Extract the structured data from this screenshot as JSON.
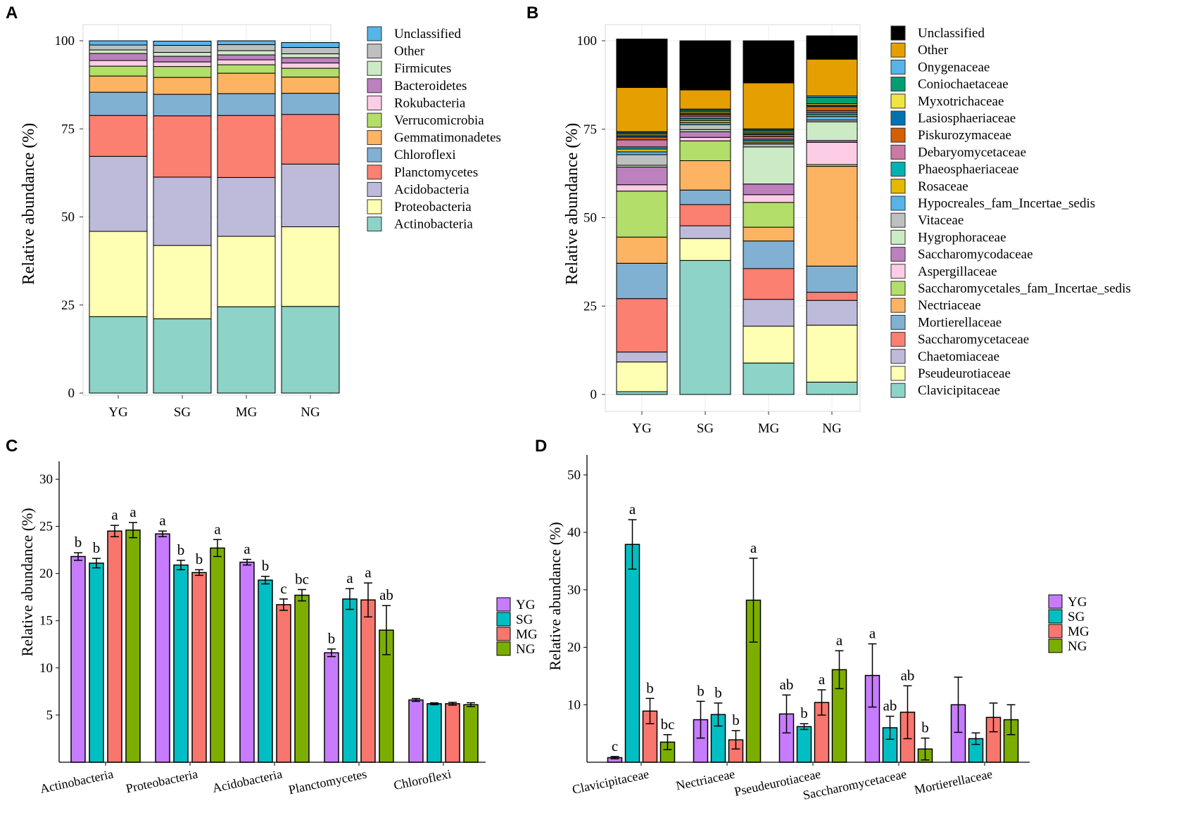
{
  "chart_data": [
    {
      "panel": "A",
      "type": "bar",
      "stacked": true,
      "ylabel": "Relative abundance (%)",
      "ylim": [
        0,
        100
      ],
      "yticks": [
        0,
        25,
        50,
        75,
        100
      ],
      "categories": [
        "YG",
        "SG",
        "MG",
        "NG"
      ],
      "series": [
        {
          "name": "Actinobacteria",
          "color": "#8dd3c7",
          "values": [
            21.7,
            21.1,
            24.5,
            24.6
          ]
        },
        {
          "name": "Proteobacteria",
          "color": "#ffffb3",
          "values": [
            24.2,
            20.8,
            20.0,
            22.6
          ]
        },
        {
          "name": "Acidobacteria",
          "color": "#bebada",
          "values": [
            21.3,
            19.4,
            16.7,
            17.8
          ]
        },
        {
          "name": "Planctomycetes",
          "color": "#fb8072",
          "values": [
            11.6,
            17.4,
            17.6,
            14.1
          ]
        },
        {
          "name": "Chloroflexi",
          "color": "#80b1d3",
          "values": [
            6.6,
            6.1,
            6.2,
            6.0
          ]
        },
        {
          "name": "Gemmatimonadetes",
          "color": "#fdb462",
          "values": [
            4.6,
            4.8,
            5.8,
            4.6
          ]
        },
        {
          "name": "Verrucomicrobia",
          "color": "#b3de69",
          "values": [
            2.8,
            3.1,
            2.4,
            2.5
          ]
        },
        {
          "name": "Rokubacteria",
          "color": "#fccde5",
          "values": [
            1.6,
            1.3,
            1.4,
            1.5
          ]
        },
        {
          "name": "Bacteroidetes",
          "color": "#bc80bd",
          "values": [
            2.0,
            1.6,
            1.4,
            1.5
          ]
        },
        {
          "name": "Firmicutes",
          "color": "#ccebc5",
          "values": [
            1.0,
            1.1,
            1.2,
            1.1
          ]
        },
        {
          "name": "Other",
          "color": "#bfbfbf",
          "values": [
            1.4,
            2.0,
            1.7,
            1.8
          ]
        },
        {
          "name": "Unclassified",
          "color": "#56b4e9",
          "values": [
            1.2,
            1.2,
            1.1,
            1.4
          ]
        }
      ]
    },
    {
      "panel": "B",
      "type": "bar",
      "stacked": true,
      "ylabel": "Relative abundance (%)",
      "ylim": [
        0,
        100
      ],
      "yticks": [
        0,
        25,
        50,
        75,
        100
      ],
      "categories": [
        "YG",
        "SG",
        "MG",
        "NG"
      ],
      "series": [
        {
          "name": "Clavicipitaceae",
          "color": "#8dd3c7",
          "values": [
            0.8,
            37.9,
            8.9,
            3.5
          ]
        },
        {
          "name": "Pseudeurotiaceae",
          "color": "#ffffb3",
          "values": [
            8.4,
            6.2,
            10.4,
            16.1
          ]
        },
        {
          "name": "Chaetomiaceae",
          "color": "#bebada",
          "values": [
            2.8,
            3.6,
            7.6,
            7.0
          ]
        },
        {
          "name": "Saccharomycetaceae",
          "color": "#fb8072",
          "values": [
            15.1,
            6.0,
            8.7,
            2.3
          ]
        },
        {
          "name": "Mortierellaceae",
          "color": "#80b1d3",
          "values": [
            10.0,
            4.1,
            7.8,
            7.4
          ]
        },
        {
          "name": "Nectriaceae",
          "color": "#fdb462",
          "values": [
            7.4,
            8.3,
            3.9,
            28.2
          ]
        },
        {
          "name": "Saccharomycetales_fam_Incertae_sedis",
          "color": "#b3de69",
          "values": [
            13.0,
            5.6,
            7.0,
            0.5
          ]
        },
        {
          "name": "Aspergillaceae",
          "color": "#fccde5",
          "values": [
            1.8,
            1.0,
            2.2,
            6.3
          ]
        },
        {
          "name": "Saccharomycodaceae",
          "color": "#bc80bd",
          "values": [
            5.0,
            1.6,
            3.0,
            0.5
          ]
        },
        {
          "name": "Hygrophoraceae",
          "color": "#ccebc5",
          "values": [
            0.5,
            0.6,
            10.5,
            5.3
          ]
        },
        {
          "name": "Vitaceae",
          "color": "#bfbfbf",
          "values": [
            3.0,
            1.4,
            0.8,
            0.5
          ]
        },
        {
          "name": "Hypocreales_fam_Incertae_sedis",
          "color": "#56b4e9",
          "values": [
            0.8,
            0.6,
            0.4,
            1.0
          ]
        },
        {
          "name": "Rosaceae",
          "color": "#e6b800",
          "values": [
            0.8,
            0.6,
            0.5,
            0.5
          ]
        },
        {
          "name": "Phaeosphaeriaceae",
          "color": "#00b2b2",
          "values": [
            0.6,
            0.6,
            0.5,
            0.6
          ]
        },
        {
          "name": "Debaryomycetaceae",
          "color": "#cc79a7",
          "values": [
            2.0,
            0.6,
            0.7,
            0.5
          ]
        },
        {
          "name": "Piskurozymaceae",
          "color": "#d55e00",
          "values": [
            0.8,
            0.5,
            0.6,
            1.2
          ]
        },
        {
          "name": "Lasiosphaeriaceae",
          "color": "#0072b2",
          "values": [
            0.4,
            0.4,
            0.5,
            0.4
          ]
        },
        {
          "name": "Myxotrichaceae",
          "color": "#f0e442",
          "values": [
            0.4,
            0.4,
            0.4,
            0.4
          ]
        },
        {
          "name": "Coniochaetaceae",
          "color": "#009e73",
          "values": [
            0.4,
            0.4,
            0.4,
            1.8
          ]
        },
        {
          "name": "Onygenaceae",
          "color": "#56b4e9",
          "values": [
            0.3,
            0.3,
            0.3,
            0.4
          ]
        },
        {
          "name": "Other",
          "color": "#e69f00",
          "values": [
            12.5,
            5.4,
            13.0,
            10.4
          ]
        },
        {
          "name": "Unclassified",
          "color": "#000000",
          "values": [
            13.7,
            13.9,
            11.9,
            6.6
          ]
        }
      ]
    },
    {
      "panel": "C",
      "type": "bar",
      "ylabel": "Relative abundance (%)",
      "ylim": [
        0,
        31
      ],
      "yticks": [
        5,
        10,
        15,
        20,
        25,
        30
      ],
      "categories": [
        "Actinobacteria",
        "Proteobacteria",
        "Acidobacteria",
        "Planctomycetes",
        "Chloroflexi"
      ],
      "series": [
        {
          "name": "YG",
          "color": "#c77cff",
          "values": [
            21.8,
            24.2,
            21.2,
            11.6,
            6.6
          ],
          "errors": [
            0.4,
            0.3,
            0.3,
            0.4,
            0.15
          ],
          "letters": [
            "b",
            "a",
            "a",
            "b",
            ""
          ]
        },
        {
          "name": "SG",
          "color": "#00bfc4",
          "values": [
            21.1,
            20.9,
            19.3,
            17.3,
            6.2
          ],
          "errors": [
            0.5,
            0.5,
            0.4,
            1.1,
            0.1
          ],
          "letters": [
            "b",
            "b",
            "b",
            "a",
            ""
          ]
        },
        {
          "name": "MG",
          "color": "#f8766d",
          "values": [
            24.5,
            20.1,
            16.7,
            17.2,
            6.2
          ],
          "errors": [
            0.6,
            0.3,
            0.6,
            1.8,
            0.15
          ],
          "letters": [
            "a",
            "b",
            "c",
            "a",
            ""
          ]
        },
        {
          "name": "NG",
          "color": "#7cae00",
          "values": [
            24.6,
            22.7,
            17.7,
            14.0,
            6.1
          ],
          "errors": [
            0.8,
            0.9,
            0.6,
            2.6,
            0.2
          ],
          "letters": [
            "a",
            "a",
            "bc",
            "ab",
            ""
          ]
        }
      ],
      "legend": "right"
    },
    {
      "panel": "D",
      "type": "bar",
      "ylabel": "Relative abundance (%)",
      "ylim": [
        0,
        52
      ],
      "yticks": [
        10,
        20,
        30,
        40,
        50
      ],
      "categories": [
        "Clavicipitaceae",
        "Nectriaceae",
        "Pseudeurotiaceae",
        "Saccharomycetaceae",
        "Mortierellaceae"
      ],
      "series": [
        {
          "name": "YG",
          "color": "#c77cff",
          "values": [
            0.8,
            7.4,
            8.4,
            15.1,
            10.0
          ],
          "errors": [
            0.2,
            3.2,
            3.3,
            5.5,
            4.8
          ],
          "letters": [
            "c",
            "b",
            "ab",
            "a",
            ""
          ]
        },
        {
          "name": "SG",
          "color": "#00bfc4",
          "values": [
            37.9,
            8.3,
            6.2,
            6.0,
            4.1
          ],
          "errors": [
            4.3,
            2.0,
            0.5,
            2.0,
            1.0
          ],
          "letters": [
            "a",
            "b",
            "b",
            "ab",
            ""
          ]
        },
        {
          "name": "MG",
          "color": "#f8766d",
          "values": [
            8.9,
            3.9,
            10.4,
            8.7,
            7.8
          ],
          "errors": [
            2.2,
            1.6,
            2.2,
            4.6,
            2.5
          ],
          "letters": [
            "b",
            "b",
            "a",
            "ab",
            ""
          ]
        },
        {
          "name": "NG",
          "color": "#7cae00",
          "values": [
            3.5,
            28.2,
            16.1,
            2.3,
            7.4
          ],
          "errors": [
            1.3,
            7.3,
            3.3,
            1.9,
            2.6
          ],
          "letters": [
            "bc",
            "a",
            "a",
            "b",
            ""
          ]
        }
      ],
      "legend": "right"
    }
  ]
}
